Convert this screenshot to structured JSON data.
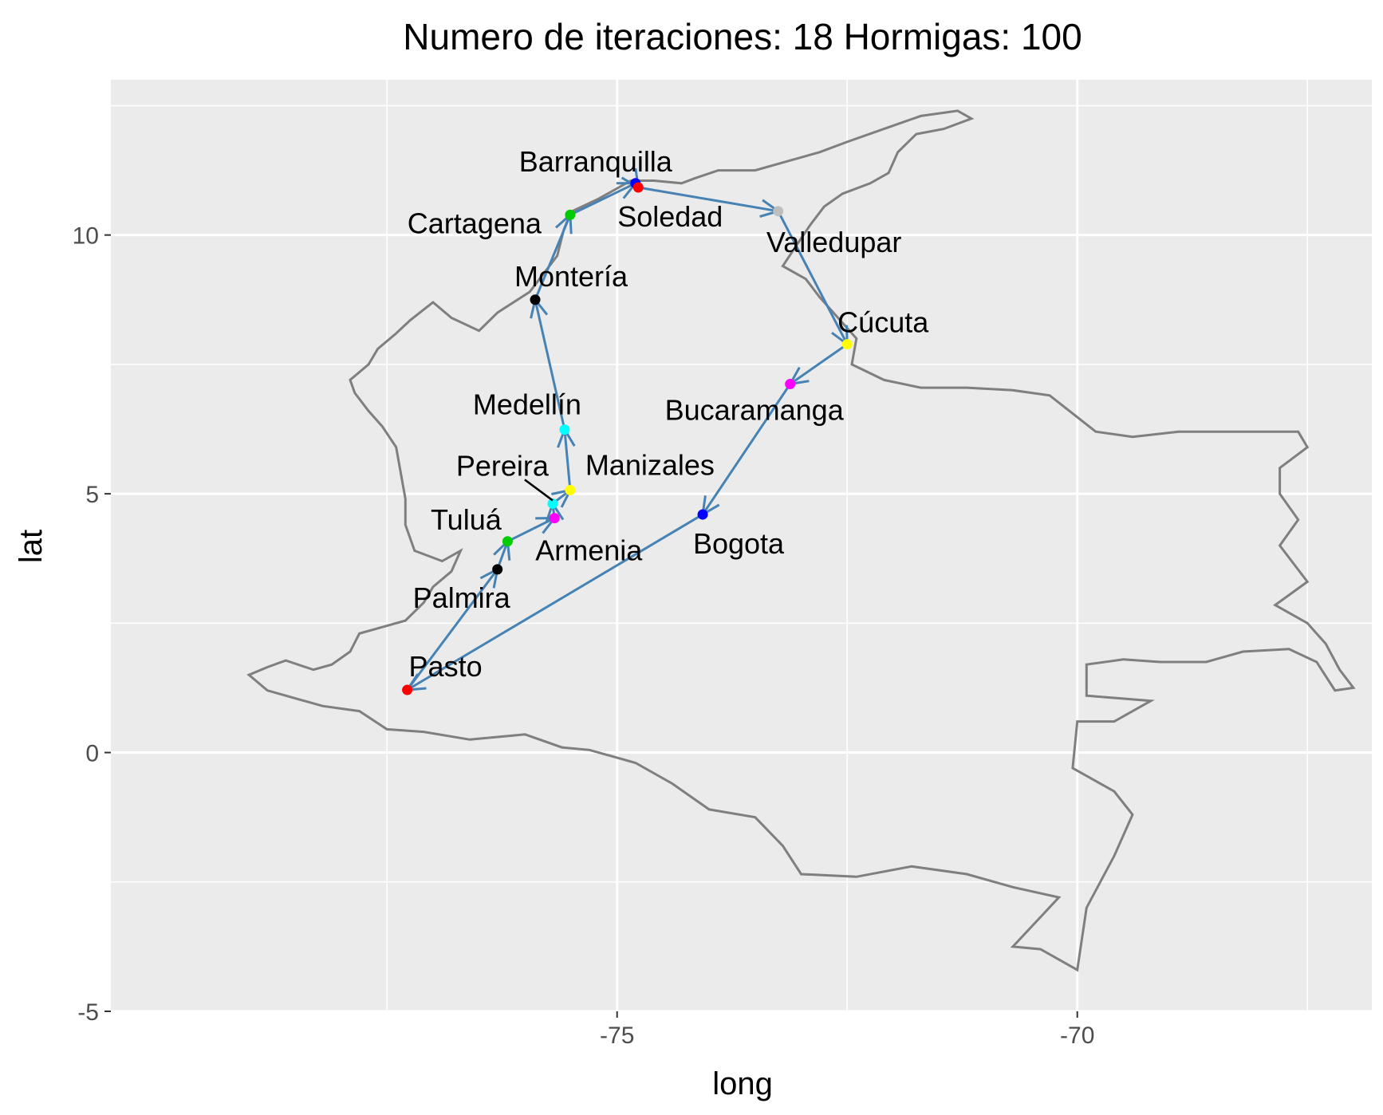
{
  "chart_data": {
    "type": "scatter",
    "title": "Numero de iteraciones: 18 Hormigas: 100",
    "xlabel": "long",
    "ylabel": "lat",
    "xlim": [
      -80.5,
      -66.8
    ],
    "ylim": [
      -5.0,
      13.0
    ],
    "x_ticks": [
      -75,
      -70
    ],
    "x_tick_labels": [
      "-75",
      "-70"
    ],
    "y_ticks": [
      -5,
      0,
      5,
      10
    ],
    "y_tick_labels": [
      "-5",
      "0",
      "5",
      "10"
    ],
    "grid": true,
    "legend": "none",
    "colors": {
      "panel": "#ebebeb",
      "grid": "#ffffff",
      "outline": "#7f7f7f",
      "route": "#4682b4"
    },
    "cities": [
      {
        "name": "Barranquilla",
        "long": -74.8,
        "lat": 11.0,
        "color": "#0000ff"
      },
      {
        "name": "Soledad",
        "long": -74.77,
        "lat": 10.92,
        "color": "#ff0000"
      },
      {
        "name": "Cartagena",
        "long": -75.51,
        "lat": 10.39,
        "color": "#00cd00"
      },
      {
        "name": "Valledupar",
        "long": -73.25,
        "lat": 10.46,
        "color": "#bebebe"
      },
      {
        "name": "Montería",
        "long": -75.89,
        "lat": 8.75,
        "color": "#000000"
      },
      {
        "name": "Cúcuta",
        "long": -72.5,
        "lat": 7.89,
        "color": "#ffff00"
      },
      {
        "name": "Bucaramanga",
        "long": -73.12,
        "lat": 7.12,
        "color": "#ff00ff"
      },
      {
        "name": "Medellín",
        "long": -75.57,
        "lat": 6.24,
        "color": "#00ffff"
      },
      {
        "name": "Manizales",
        "long": -75.51,
        "lat": 5.07,
        "color": "#ffff00"
      },
      {
        "name": "Pereira",
        "long": -75.7,
        "lat": 4.81,
        "color": "#00ffff"
      },
      {
        "name": "Armenia",
        "long": -75.68,
        "lat": 4.53,
        "color": "#ff00ff"
      },
      {
        "name": "Tuluá",
        "long": -76.19,
        "lat": 4.08,
        "color": "#00cd00"
      },
      {
        "name": "Bogota",
        "long": -74.07,
        "lat": 4.6,
        "color": "#0000ff"
      },
      {
        "name": "Palmira",
        "long": -76.3,
        "lat": 3.54,
        "color": "#000000"
      },
      {
        "name": "Pasto",
        "long": -77.28,
        "lat": 1.21,
        "color": "#ff0000"
      }
    ],
    "route": [
      "Pasto",
      "Palmira",
      "Tuluá",
      "Armenia",
      "Pereira",
      "Manizales",
      "Medellín",
      "Montería",
      "Cartagena",
      "Barranquilla",
      "Soledad",
      "Valledupar",
      "Cúcuta",
      "Bucaramanga",
      "Bogota",
      "Pasto"
    ],
    "outline": [
      [
        -78.8,
        1.65
      ],
      [
        -78.6,
        1.78
      ],
      [
        -78.3,
        1.6
      ],
      [
        -78.1,
        1.7
      ],
      [
        -77.9,
        1.95
      ],
      [
        -77.8,
        2.3
      ],
      [
        -77.6,
        2.4
      ],
      [
        -77.3,
        2.55
      ],
      [
        -77.1,
        2.9
      ],
      [
        -77.0,
        3.2
      ],
      [
        -76.8,
        3.5
      ],
      [
        -76.7,
        3.9
      ],
      [
        -76.9,
        3.7
      ],
      [
        -77.2,
        3.9
      ],
      [
        -77.3,
        4.4
      ],
      [
        -77.3,
        4.9
      ],
      [
        -77.35,
        5.4
      ],
      [
        -77.4,
        5.9
      ],
      [
        -77.55,
        6.3
      ],
      [
        -77.7,
        6.6
      ],
      [
        -77.85,
        6.95
      ],
      [
        -77.9,
        7.2
      ],
      [
        -77.7,
        7.5
      ],
      [
        -77.6,
        7.8
      ],
      [
        -77.4,
        8.1
      ],
      [
        -77.25,
        8.35
      ],
      [
        -77.0,
        8.7
      ],
      [
        -76.8,
        8.4
      ],
      [
        -76.5,
        8.15
      ],
      [
        -76.3,
        8.5
      ],
      [
        -75.95,
        8.9
      ],
      [
        -75.8,
        9.25
      ],
      [
        -75.65,
        9.6
      ],
      [
        -75.58,
        10.1
      ],
      [
        -75.5,
        10.45
      ],
      [
        -75.2,
        10.7
      ],
      [
        -74.85,
        11.05
      ],
      [
        -74.6,
        11.05
      ],
      [
        -74.3,
        11.0
      ],
      [
        -74.15,
        11.1
      ],
      [
        -73.9,
        11.25
      ],
      [
        -73.5,
        11.25
      ],
      [
        -73.2,
        11.4
      ],
      [
        -72.8,
        11.6
      ],
      [
        -72.5,
        11.8
      ],
      [
        -72.1,
        12.05
      ],
      [
        -71.7,
        12.3
      ],
      [
        -71.3,
        12.4
      ],
      [
        -71.15,
        12.25
      ],
      [
        -71.45,
        12.05
      ],
      [
        -71.75,
        11.95
      ],
      [
        -71.95,
        11.6
      ],
      [
        -72.05,
        11.2
      ],
      [
        -72.25,
        11.0
      ],
      [
        -72.55,
        10.8
      ],
      [
        -72.75,
        10.55
      ],
      [
        -72.9,
        10.2
      ],
      [
        -73.05,
        9.8
      ],
      [
        -73.2,
        9.4
      ],
      [
        -72.95,
        9.15
      ],
      [
        -72.8,
        8.8
      ],
      [
        -72.6,
        8.4
      ],
      [
        -72.4,
        8.0
      ],
      [
        -72.45,
        7.5
      ],
      [
        -72.1,
        7.2
      ],
      [
        -71.7,
        7.05
      ],
      [
        -71.2,
        7.05
      ],
      [
        -70.7,
        7.0
      ],
      [
        -70.3,
        6.9
      ],
      [
        -69.8,
        6.2
      ],
      [
        -69.4,
        6.1
      ],
      [
        -68.9,
        6.2
      ],
      [
        -68.2,
        6.2
      ],
      [
        -67.6,
        6.2
      ],
      [
        -67.5,
        5.9
      ],
      [
        -67.8,
        5.5
      ],
      [
        -67.8,
        5.0
      ],
      [
        -67.6,
        4.5
      ],
      [
        -67.8,
        4.0
      ],
      [
        -67.5,
        3.3
      ],
      [
        -67.85,
        2.85
      ],
      [
        -67.5,
        2.5
      ],
      [
        -67.3,
        2.1
      ],
      [
        -67.15,
        1.6
      ],
      [
        -67.0,
        1.25
      ],
      [
        -67.2,
        1.2
      ],
      [
        -67.4,
        1.75
      ],
      [
        -67.7,
        2.0
      ],
      [
        -68.2,
        1.95
      ],
      [
        -68.6,
        1.75
      ],
      [
        -69.1,
        1.75
      ],
      [
        -69.5,
        1.8
      ],
      [
        -69.9,
        1.7
      ],
      [
        -69.9,
        1.1
      ],
      [
        -69.2,
        1.0
      ],
      [
        -69.6,
        0.6
      ],
      [
        -70.0,
        0.6
      ],
      [
        -70.05,
        -0.3
      ],
      [
        -69.6,
        -0.75
      ],
      [
        -69.4,
        -1.2
      ],
      [
        -69.6,
        -2.0
      ],
      [
        -69.9,
        -3.0
      ],
      [
        -70.0,
        -4.2
      ],
      [
        -70.4,
        -3.8
      ],
      [
        -70.7,
        -3.75
      ],
      [
        -70.2,
        -2.8
      ],
      [
        -70.7,
        -2.6
      ],
      [
        -71.2,
        -2.35
      ],
      [
        -71.8,
        -2.2
      ],
      [
        -72.4,
        -2.4
      ],
      [
        -73.0,
        -2.35
      ],
      [
        -73.2,
        -1.8
      ],
      [
        -73.5,
        -1.25
      ],
      [
        -74.0,
        -1.1
      ],
      [
        -74.4,
        -0.6
      ],
      [
        -74.8,
        -0.2
      ],
      [
        -75.3,
        0.05
      ],
      [
        -75.6,
        0.1
      ],
      [
        -76.0,
        0.35
      ],
      [
        -76.6,
        0.25
      ],
      [
        -77.1,
        0.4
      ],
      [
        -77.5,
        0.45
      ],
      [
        -77.8,
        0.8
      ],
      [
        -78.2,
        0.9
      ],
      [
        -78.8,
        1.2
      ],
      [
        -79.0,
        1.5
      ],
      [
        -78.8,
        1.65
      ]
    ]
  }
}
